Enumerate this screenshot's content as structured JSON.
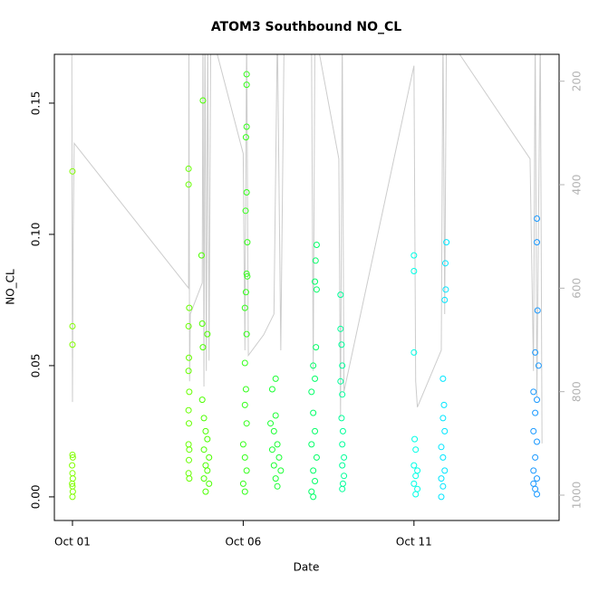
{
  "chart_data": {
    "type": "scatter",
    "title": "ATOM3 Southbound NO_CL",
    "x_label": "Date",
    "y_label": "NO_CL",
    "xlim": [
      0.47,
      15.25
    ],
    "xticks": [
      {
        "value": 1,
        "label": "Oct 01"
      },
      {
        "value": 6,
        "label": "Oct 06"
      },
      {
        "value": 11,
        "label": "Oct 11"
      }
    ],
    "ylim": [
      -0.009,
      0.1686
    ],
    "yticks": [
      {
        "value": 0,
        "label": "0.00"
      },
      {
        "value": 0.05,
        "label": "0.05"
      },
      {
        "value": 0.1,
        "label": "0.10"
      },
      {
        "value": 0.15,
        "label": "0.15"
      }
    ],
    "y2lim": [
      1049,
      148
    ],
    "y2ticks": [
      200,
      400,
      600,
      800,
      1000
    ],
    "y2_color": "#b3b3b3",
    "series": [
      {
        "type": "scatter",
        "color": "#80ff00",
        "x": [
          1.0,
          1.0,
          1.0,
          1.0,
          1.01,
          0.99,
          1.0,
          1.01,
          0.99,
          1.0,
          1.01,
          1.0
        ],
        "values": [
          0.124,
          0.065,
          0.058,
          0.016,
          0.015,
          0.012,
          0.009,
          0.007,
          0.005,
          0.004,
          0.002,
          0.0
        ]
      },
      {
        "type": "scatter",
        "color": "#66ff00",
        "x": [
          4.4,
          4.4,
          4.42,
          4.4,
          4.41,
          4.4,
          4.42,
          4.4,
          4.41,
          4.4,
          4.42,
          4.41,
          4.4,
          4.42
        ],
        "values": [
          0.125,
          0.119,
          0.072,
          0.065,
          0.053,
          0.048,
          0.04,
          0.033,
          0.028,
          0.02,
          0.018,
          0.014,
          0.009,
          0.007
        ]
      },
      {
        "type": "scatter",
        "color": "#4cff00",
        "x": [
          4.82,
          4.78,
          4.8,
          4.95,
          4.82,
          4.8,
          4.85,
          4.9,
          4.95,
          4.85,
          5.0,
          4.9,
          4.95,
          4.85,
          5.0,
          4.9
        ],
        "values": [
          0.151,
          0.092,
          0.066,
          0.062,
          0.057,
          0.037,
          0.03,
          0.025,
          0.022,
          0.018,
          0.015,
          0.012,
          0.01,
          0.007,
          0.005,
          0.002
        ]
      },
      {
        "type": "scatter",
        "color": "#33ff1a",
        "x": [
          6.1,
          6.1,
          6.1,
          6.08,
          6.1,
          6.07,
          6.12,
          6.1,
          6.12,
          6.08,
          6.05,
          6.1,
          6.05,
          6.08,
          6.05,
          6.1,
          6.0,
          6.05,
          6.1,
          6.0,
          6.05
        ],
        "values": [
          0.161,
          0.157,
          0.141,
          0.137,
          0.116,
          0.109,
          0.097,
          0.085,
          0.084,
          0.078,
          0.072,
          0.062,
          0.051,
          0.041,
          0.035,
          0.028,
          0.02,
          0.015,
          0.01,
          0.005,
          0.002
        ]
      },
      {
        "type": "scatter",
        "color": "#1aff33",
        "x": [
          6.95,
          6.85,
          6.95,
          6.8,
          6.9,
          7.0,
          6.85,
          7.05,
          6.9,
          7.1,
          6.95,
          7.0
        ],
        "values": [
          0.045,
          0.041,
          0.031,
          0.028,
          0.025,
          0.02,
          0.018,
          0.015,
          0.012,
          0.01,
          0.007,
          0.004
        ]
      },
      {
        "type": "scatter",
        "color": "#00ff66",
        "x": [
          8.15,
          8.12,
          8.1,
          8.15,
          8.13,
          8.05,
          8.1,
          8.0,
          8.05,
          8.1,
          8.0,
          8.15,
          8.05,
          8.1,
          8.0,
          8.05
        ],
        "values": [
          0.096,
          0.09,
          0.082,
          0.079,
          0.057,
          0.05,
          0.045,
          0.04,
          0.032,
          0.025,
          0.02,
          0.015,
          0.01,
          0.006,
          0.002,
          0.0
        ]
      },
      {
        "type": "scatter",
        "color": "#00ff99",
        "x": [
          8.85,
          8.85,
          8.88,
          8.9,
          8.85,
          8.9,
          8.88,
          8.92,
          8.9,
          8.95,
          8.9,
          8.95,
          8.92,
          8.9
        ],
        "values": [
          0.077,
          0.064,
          0.058,
          0.05,
          0.044,
          0.039,
          0.03,
          0.025,
          0.02,
          0.015,
          0.012,
          0.008,
          0.005,
          0.003
        ]
      },
      {
        "type": "scatter",
        "color": "#00ffe6",
        "x": [
          11.0,
          11.0,
          11.0,
          11.02,
          11.05,
          11.0,
          11.1,
          11.05,
          11.0,
          11.1,
          11.05
        ],
        "values": [
          0.092,
          0.086,
          0.055,
          0.022,
          0.018,
          0.012,
          0.01,
          0.008,
          0.005,
          0.003,
          0.001
        ]
      },
      {
        "type": "scatter",
        "color": "#00e6ff",
        "x": [
          11.95,
          11.92,
          11.93,
          11.9,
          11.85,
          11.88,
          11.85,
          11.9,
          11.8,
          11.85,
          11.9,
          11.8,
          11.85,
          11.8
        ],
        "values": [
          0.097,
          0.089,
          0.079,
          0.075,
          0.045,
          0.035,
          0.03,
          0.025,
          0.019,
          0.015,
          0.01,
          0.007,
          0.004,
          0.0
        ]
      },
      {
        "type": "scatter",
        "color": "#1a99ff",
        "x": [
          14.6,
          14.6,
          14.62,
          14.55,
          14.65,
          14.5,
          14.6,
          14.55,
          14.5,
          14.6,
          14.55,
          14.5,
          14.6,
          14.5,
          14.55,
          14.6
        ],
        "values": [
          0.106,
          0.097,
          0.071,
          0.055,
          0.05,
          0.04,
          0.037,
          0.032,
          0.025,
          0.021,
          0.015,
          0.01,
          0.007,
          0.005,
          0.003,
          0.001
        ]
      },
      {
        "type": "line",
        "axis": "y2",
        "color": "#cccccc",
        "x": [
          0.98,
          1.0,
          1.02,
          1.05,
          4.4,
          4.41,
          4.43,
          4.45,
          4.8,
          4.82,
          4.85,
          4.88,
          4.92,
          4.96,
          5.0,
          5.05,
          6.0,
          6.05,
          6.1,
          6.15,
          6.6,
          6.9,
          7.0,
          7.1,
          7.2,
          8.0,
          8.05,
          8.1,
          8.8,
          8.85,
          8.9,
          8.95,
          11.0,
          11.05,
          11.1,
          11.8,
          11.85,
          11.9,
          11.95,
          14.4,
          14.5,
          14.55,
          14.6,
          14.7,
          14.75
        ],
        "values": [
          100,
          820,
          500,
          320,
          600,
          130,
          780,
          650,
          590,
          100,
          790,
          100,
          760,
          100,
          740,
          100,
          340,
          720,
          100,
          730,
          690,
          650,
          100,
          720,
          100,
          130,
          760,
          100,
          350,
          850,
          100,
          800,
          170,
          780,
          830,
          720,
          100,
          650,
          110,
          350,
          760,
          100,
          810,
          100,
          900
        ]
      }
    ]
  }
}
